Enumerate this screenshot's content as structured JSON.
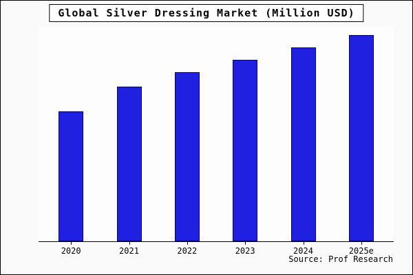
{
  "chart_data": {
    "type": "bar",
    "title": "Global Silver Dressing Market (Million USD)",
    "categories": [
      "2020",
      "2021",
      "2022",
      "2023",
      "2024",
      "2025e"
    ],
    "values": [
      63,
      75,
      82,
      88,
      94,
      100
    ],
    "ylim": [
      0,
      100
    ],
    "xlabel": "",
    "ylabel": "",
    "grid": false,
    "legend": false,
    "bar_color": "#2020e0",
    "bar_edge_color": "#000066",
    "note": "No y-axis scale shown in source image; values are relative units estimated from bar heights (2025e = 100)."
  },
  "source": "Source: Prof Research"
}
